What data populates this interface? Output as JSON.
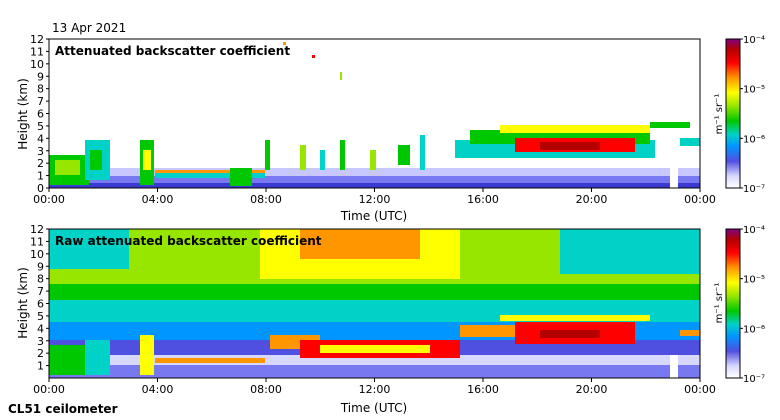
{
  "date": "13 Apr 2021",
  "instrument": "CL51 ceilometer",
  "colors": {
    "colormap": [
      "#ffffff",
      "#d8d8ff",
      "#5050e0",
      "#0096ff",
      "#00d2c8",
      "#00c800",
      "#96e600",
      "#ffff00",
      "#ff9600",
      "#ff0000",
      "#b40000",
      "#800080"
    ],
    "frame": "#000000"
  },
  "chart_data": [
    {
      "type": "heatmap",
      "title": "Attenuated backscatter coefficient",
      "xlabel": "Time (UTC)",
      "ylabel": "Height (km)",
      "xticks": [
        "00:00",
        "04:00",
        "08:00",
        "12:00",
        "16:00",
        "20:00",
        "00:00"
      ],
      "yticks": [
        "0",
        "1",
        "2",
        "3",
        "4",
        "5",
        "6",
        "7",
        "8",
        "9",
        "10",
        "11",
        "12"
      ],
      "ylim": [
        0,
        12
      ],
      "colorbar": {
        "label": "m⁻¹ sr⁻¹",
        "min": "10⁻⁷",
        "max": "10⁻⁴",
        "ticks": [
          "10⁻⁷",
          "10⁻⁶",
          "10⁻⁵",
          "10⁻⁴"
        ],
        "scale": "log"
      },
      "cloud_layer": [
        {
          "t": 0.5,
          "h": 2.0
        },
        {
          "t": 1.5,
          "h": 1.6
        },
        {
          "t": 2.5,
          "h": 2.5
        },
        {
          "t": 3.5,
          "h": 1.2
        },
        {
          "t": 5.0,
          "h": 1.2
        },
        {
          "t": 7.0,
          "h": 1.8
        },
        {
          "t": 8.5,
          "h": 2.5
        },
        {
          "t": 10.5,
          "h": 2.6
        },
        {
          "t": 13.5,
          "h": 2.7
        },
        {
          "t": 15.5,
          "h": 3.0
        },
        {
          "t": 17.0,
          "h": 3.6
        },
        {
          "t": 19.5,
          "h": 3.3
        },
        {
          "t": 21.5,
          "h": 4.0
        },
        {
          "t": 23.0,
          "h": 3.8
        }
      ]
    },
    {
      "type": "heatmap",
      "title": "Raw attenuated backscatter coefficient",
      "xlabel": "Time (UTC)",
      "ylabel": "Height (km)",
      "xticks": [
        "00:00",
        "04:00",
        "08:00",
        "12:00",
        "16:00",
        "20:00",
        "00:00"
      ],
      "yticks": [
        "1",
        "2",
        "3",
        "4",
        "5",
        "6",
        "7",
        "8",
        "9",
        "10",
        "11",
        "12"
      ],
      "ylim": [
        0,
        12
      ],
      "colorbar": {
        "label": "m⁻¹ sr⁻¹",
        "min": "10⁻⁷",
        "max": "10⁻⁴",
        "ticks": [
          "10⁻⁷",
          "10⁻⁶",
          "10⁻⁵",
          "10⁻⁴"
        ],
        "scale": "log"
      },
      "cloud_layer": [
        {
          "t": 0.5,
          "h": 2.0
        },
        {
          "t": 1.5,
          "h": 1.6
        },
        {
          "t": 2.5,
          "h": 2.5
        },
        {
          "t": 3.5,
          "h": 1.2
        },
        {
          "t": 5.0,
          "h": 1.2
        },
        {
          "t": 7.0,
          "h": 1.8
        },
        {
          "t": 8.5,
          "h": 2.5
        },
        {
          "t": 10.5,
          "h": 2.6
        },
        {
          "t": 13.5,
          "h": 2.7
        },
        {
          "t": 15.5,
          "h": 3.0
        },
        {
          "t": 17.0,
          "h": 3.6
        },
        {
          "t": 19.5,
          "h": 3.3
        },
        {
          "t": 21.5,
          "h": 4.0
        },
        {
          "t": 23.0,
          "h": 3.8
        }
      ]
    }
  ]
}
